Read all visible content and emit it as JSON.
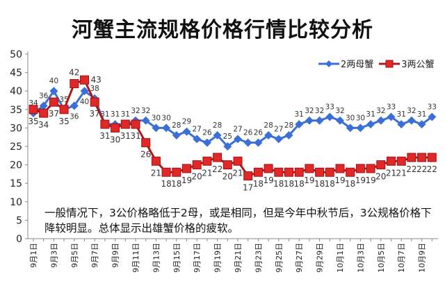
{
  "chart_data": {
    "type": "line",
    "title": "河蟹主流规格价格行情比较分析",
    "ylim": [
      0,
      50
    ],
    "yticks": [
      0,
      5,
      10,
      15,
      20,
      25,
      30,
      35,
      40,
      45,
      50
    ],
    "x": [
      "9月1日",
      "9月2日",
      "9月3日",
      "9月4日",
      "9月5日",
      "9月6日",
      "9月7日",
      "9月8日",
      "9月9日",
      "9月10日",
      "9月11日",
      "9月12日",
      "9月13日",
      "9月14日",
      "9月15日",
      "9月16日",
      "9月17日",
      "9月18日",
      "9月19日",
      "9月20日",
      "9月21日",
      "9月22日",
      "9月23日",
      "9月24日",
      "9月25日",
      "9月26日",
      "9月27日",
      "9月28日",
      "9月29日",
      "9月30日",
      "10月1日",
      "10月2日",
      "10月3日",
      "10月4日",
      "10月5日",
      "10月6日",
      "10月7日",
      "10月8日",
      "10月9日",
      "10月10日"
    ],
    "xtick_labels": [
      "9月1日",
      "9月3日",
      "9月5日",
      "9月7日",
      "9月9日",
      "9月11日",
      "9月13日",
      "9月15日",
      "9月17日",
      "9月19日",
      "9月21日",
      "9月23日",
      "9月25日",
      "9月27日",
      "9月29日",
      "10月1日",
      "10月3日",
      "10月5日",
      "10月7日",
      "10月9日"
    ],
    "series": [
      {
        "name": "2两母蟹",
        "color": "#3a6fd8",
        "values": [
          34,
          36,
          40,
          35,
          36,
          40,
          38,
          31,
          31,
          31,
          32,
          32,
          30,
          30,
          28,
          29,
          27,
          26,
          28,
          25,
          27,
          26,
          26,
          28,
          27,
          28,
          31,
          32,
          32,
          33,
          32,
          30,
          30,
          31,
          32,
          33,
          31,
          32,
          31,
          33
        ]
      },
      {
        "name": "3两公蟹",
        "color": "#d42020",
        "values": [
          35,
          34,
          37,
          35,
          42,
          43,
          37,
          31,
          30,
          31,
          31,
          26,
          21,
          18,
          18,
          19,
          20,
          21,
          22,
          20,
          21,
          17,
          18,
          19,
          18,
          18,
          18,
          19,
          18,
          18,
          19,
          18,
          19,
          19,
          20,
          21,
          21,
          22,
          22,
          22
        ]
      }
    ],
    "legend": "top-right",
    "annotation": "一般情况下，3公价格略低于2母，或是相同，但是今年中秋节后，3公规格价格下降较明显。总体显示出雄蟹价格的疲软。"
  }
}
